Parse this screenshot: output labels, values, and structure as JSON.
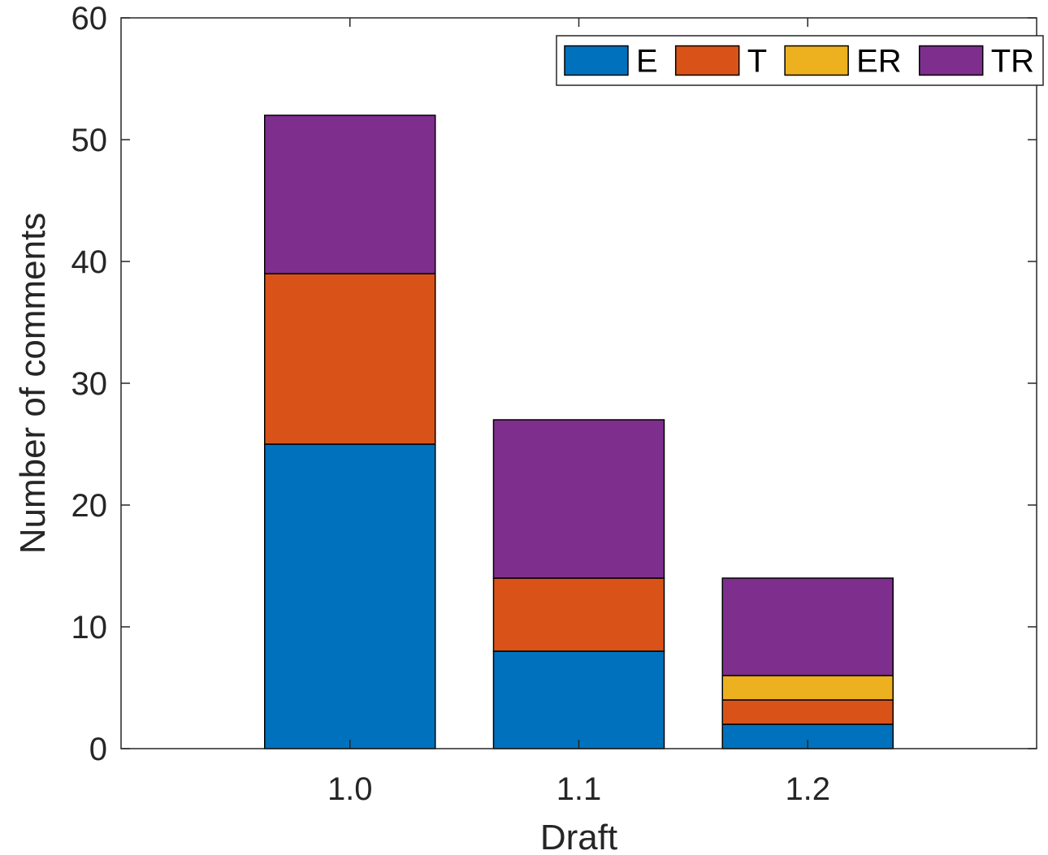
{
  "chart_data": {
    "type": "bar",
    "stacked": true,
    "categories": [
      "1.0",
      "1.1",
      "1.2"
    ],
    "series": [
      {
        "name": "E",
        "values": [
          25,
          8,
          2
        ],
        "color": "#0072BD"
      },
      {
        "name": "T",
        "values": [
          14,
          6,
          2
        ],
        "color": "#D95319"
      },
      {
        "name": "ER",
        "values": [
          0,
          0,
          2
        ],
        "color": "#EDB120"
      },
      {
        "name": "TR",
        "values": [
          13,
          13,
          8
        ],
        "color": "#7E2F8E"
      }
    ],
    "title": "",
    "xlabel": "Draft",
    "ylabel": "Number of comments",
    "ylim": [
      0,
      60
    ],
    "yticks": [
      0,
      10,
      20,
      30,
      40,
      50,
      60
    ],
    "xlim": [
      0,
      4
    ],
    "grid": false,
    "legend_position": "top-right",
    "legend_orientation": "horizontal"
  }
}
